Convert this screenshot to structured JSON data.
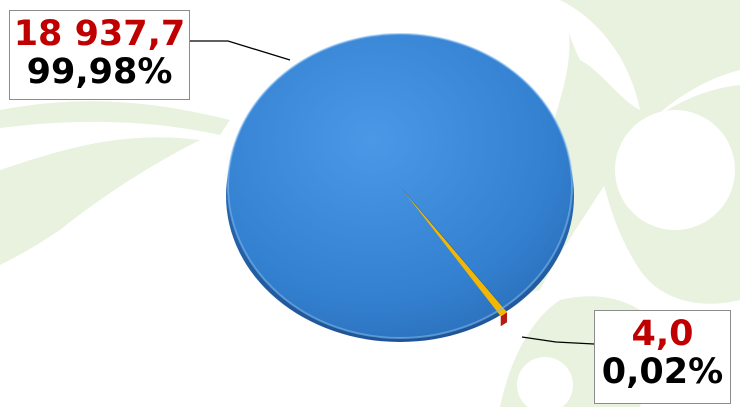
{
  "chart_data": {
    "type": "pie",
    "style": "3d",
    "title": "",
    "slices": [
      {
        "value": 18937.7,
        "value_label": "18 937,7",
        "percent": 99.98,
        "percent_label": "99,98%",
        "color": "#3a86d6"
      },
      {
        "value": 4.0,
        "value_label": "4,0",
        "percent": 0.02,
        "percent_label": "0,02%",
        "color": "#f2b705"
      }
    ],
    "label_value_color": "#c00000",
    "label_percent_color": "#000000"
  },
  "background": {
    "decoration_color": "#e9f2df"
  }
}
